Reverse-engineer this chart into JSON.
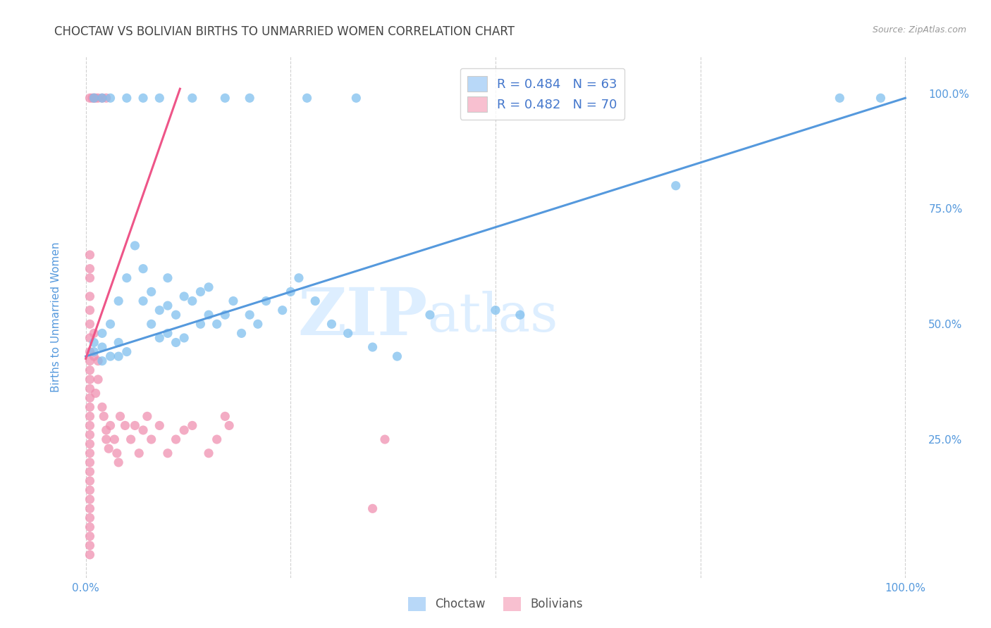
{
  "title": "CHOCTAW VS BOLIVIAN BIRTHS TO UNMARRIED WOMEN CORRELATION CHART",
  "source": "Source: ZipAtlas.com",
  "ylabel": "Births to Unmarried Women",
  "watermark_zip": "ZIP",
  "watermark_atlas": "atlas",
  "xlim": [
    -0.02,
    1.02
  ],
  "ylim": [
    -0.05,
    1.08
  ],
  "xticks": [
    0.0,
    0.25,
    0.5,
    0.75,
    1.0
  ],
  "yticks": [
    0.0,
    0.25,
    0.5,
    0.75,
    1.0
  ],
  "xtick_labels": [
    "0.0%",
    "",
    "",
    "",
    "100.0%"
  ],
  "ytick_labels_right": [
    "",
    "25.0%",
    "50.0%",
    "75.0%",
    "100.0%"
  ],
  "legend_label_choctaw": "R = 0.484   N = 63",
  "legend_label_bolivian": "R = 0.482   N = 70",
  "legend_bottom_choctaw": "Choctaw",
  "legend_bottom_bolivian": "Bolivians",
  "choctaw_color": "#7fbfee",
  "bolivian_color": "#f090b0",
  "choctaw_line_color": "#5599dd",
  "bolivian_line_color": "#ee5588",
  "choctaw_line_x": [
    0.0,
    1.0
  ],
  "choctaw_line_y": [
    0.43,
    0.99
  ],
  "bolivian_line_x": [
    0.0,
    0.115
  ],
  "bolivian_line_y": [
    0.425,
    1.01
  ],
  "grid_color": "#cccccc",
  "background_color": "#ffffff",
  "title_color": "#444444",
  "axis_label_color": "#5599dd",
  "tick_label_color": "#5599dd",
  "watermark_color": "#ddeeff",
  "source_color": "#999999",
  "choctaw_x": [
    0.01,
    0.01,
    0.02,
    0.02,
    0.02,
    0.03,
    0.03,
    0.04,
    0.04,
    0.04,
    0.05,
    0.05,
    0.06,
    0.07,
    0.07,
    0.08,
    0.08,
    0.09,
    0.09,
    0.1,
    0.1,
    0.1,
    0.11,
    0.11,
    0.12,
    0.12,
    0.13,
    0.14,
    0.14,
    0.15,
    0.15,
    0.16,
    0.17,
    0.18,
    0.19,
    0.2,
    0.21,
    0.22,
    0.24,
    0.25,
    0.26,
    0.28,
    0.3,
    0.32,
    0.35,
    0.38,
    0.42,
    0.5,
    0.53,
    0.72,
    0.01,
    0.02,
    0.03,
    0.05,
    0.07,
    0.09,
    0.13,
    0.17,
    0.2,
    0.27,
    0.33,
    0.92,
    0.97
  ],
  "choctaw_y": [
    0.44,
    0.46,
    0.42,
    0.45,
    0.48,
    0.43,
    0.5,
    0.43,
    0.46,
    0.55,
    0.44,
    0.6,
    0.67,
    0.55,
    0.62,
    0.5,
    0.57,
    0.47,
    0.53,
    0.48,
    0.54,
    0.6,
    0.46,
    0.52,
    0.47,
    0.56,
    0.55,
    0.5,
    0.57,
    0.52,
    0.58,
    0.5,
    0.52,
    0.55,
    0.48,
    0.52,
    0.5,
    0.55,
    0.53,
    0.57,
    0.6,
    0.55,
    0.5,
    0.48,
    0.45,
    0.43,
    0.52,
    0.53,
    0.52,
    0.8,
    0.99,
    0.99,
    0.99,
    0.99,
    0.99,
    0.99,
    0.99,
    0.99,
    0.99,
    0.99,
    0.99,
    0.99,
    0.99
  ],
  "bolivian_x": [
    0.005,
    0.005,
    0.005,
    0.005,
    0.005,
    0.005,
    0.005,
    0.005,
    0.005,
    0.005,
    0.005,
    0.005,
    0.005,
    0.005,
    0.005,
    0.005,
    0.005,
    0.005,
    0.005,
    0.005,
    0.005,
    0.005,
    0.005,
    0.005,
    0.005,
    0.005,
    0.005,
    0.005,
    0.005,
    0.005,
    0.01,
    0.01,
    0.012,
    0.015,
    0.015,
    0.02,
    0.022,
    0.025,
    0.025,
    0.028,
    0.03,
    0.035,
    0.038,
    0.04,
    0.042,
    0.048,
    0.055,
    0.06,
    0.065,
    0.07,
    0.075,
    0.08,
    0.09,
    0.1,
    0.11,
    0.12,
    0.13,
    0.15,
    0.16,
    0.17,
    0.175,
    0.005,
    0.008,
    0.01,
    0.012,
    0.015,
    0.02,
    0.025,
    0.35,
    0.365
  ],
  "bolivian_y": [
    0.44,
    0.42,
    0.4,
    0.38,
    0.36,
    0.34,
    0.32,
    0.3,
    0.28,
    0.26,
    0.24,
    0.22,
    0.2,
    0.18,
    0.16,
    0.14,
    0.12,
    0.1,
    0.08,
    0.06,
    0.04,
    0.02,
    0.0,
    0.47,
    0.5,
    0.53,
    0.56,
    0.6,
    0.62,
    0.65,
    0.43,
    0.48,
    0.35,
    0.38,
    0.42,
    0.32,
    0.3,
    0.27,
    0.25,
    0.23,
    0.28,
    0.25,
    0.22,
    0.2,
    0.3,
    0.28,
    0.25,
    0.28,
    0.22,
    0.27,
    0.3,
    0.25,
    0.28,
    0.22,
    0.25,
    0.27,
    0.28,
    0.22,
    0.25,
    0.3,
    0.28,
    0.99,
    0.99,
    0.99,
    0.99,
    0.99,
    0.99,
    0.99,
    0.1,
    0.25
  ]
}
